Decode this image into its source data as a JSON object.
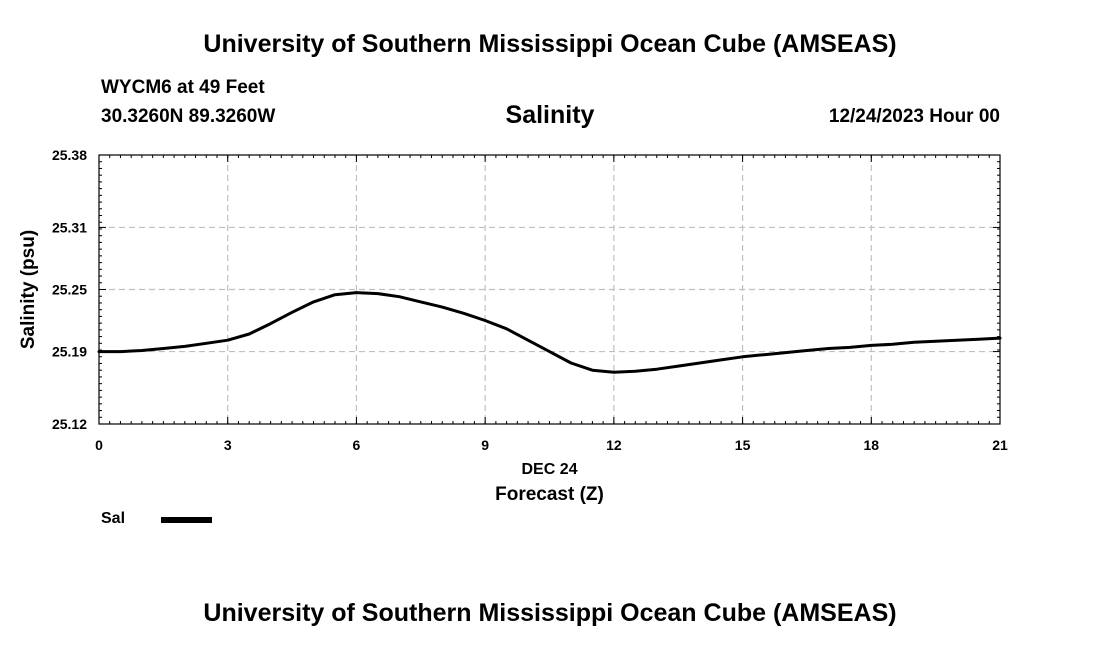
{
  "header": {
    "title": "University of Southern Mississippi Ocean Cube (AMSEAS)",
    "station": "WYCM6 at 49 Feet",
    "coords": "30.3260N  89.3260W",
    "datetime": "12/24/2023 Hour 00"
  },
  "footer": {
    "title": "University of Southern Mississippi Ocean Cube (AMSEAS)"
  },
  "legend": {
    "label": "Sal",
    "color": "#000000"
  },
  "chart_data": {
    "type": "line",
    "title": "Salinity",
    "xlabel": "Forecast (Z)",
    "xsublabel": "DEC 24",
    "ylabel": "Salinity (psu)",
    "xlim": [
      0,
      21
    ],
    "ylim": [
      25.12,
      25.38
    ],
    "xticks": [
      "0",
      "3",
      "6",
      "9",
      "12",
      "15",
      "18",
      "21"
    ],
    "yticks": [
      "25.12",
      "25.19",
      "25.25",
      "25.31",
      "25.38"
    ],
    "grid": true,
    "series": [
      {
        "name": "Sal",
        "x": [
          0,
          0.5,
          1,
          1.5,
          2,
          2.5,
          3,
          3.5,
          4,
          4.5,
          5,
          5.5,
          6,
          6.5,
          7,
          7.5,
          8,
          8.5,
          9,
          9.5,
          10,
          10.5,
          11,
          11.5,
          12,
          12.5,
          13,
          13.5,
          14,
          14.5,
          15,
          15.5,
          16,
          16.5,
          17,
          17.5,
          18,
          18.5,
          19,
          19.5,
          20,
          20.5,
          21
        ],
        "values": [
          25.19,
          25.19,
          25.191,
          25.193,
          25.195,
          25.198,
          25.201,
          25.207,
          25.217,
          25.228,
          25.238,
          25.245,
          25.247,
          25.246,
          25.243,
          25.238,
          25.233,
          25.227,
          25.22,
          25.212,
          25.201,
          25.19,
          25.179,
          25.172,
          25.17,
          25.171,
          25.173,
          25.176,
          25.179,
          25.182,
          25.185,
          25.187,
          25.189,
          25.191,
          25.193,
          25.194,
          25.196,
          25.197,
          25.199,
          25.2,
          25.201,
          25.202,
          25.203
        ]
      }
    ]
  }
}
